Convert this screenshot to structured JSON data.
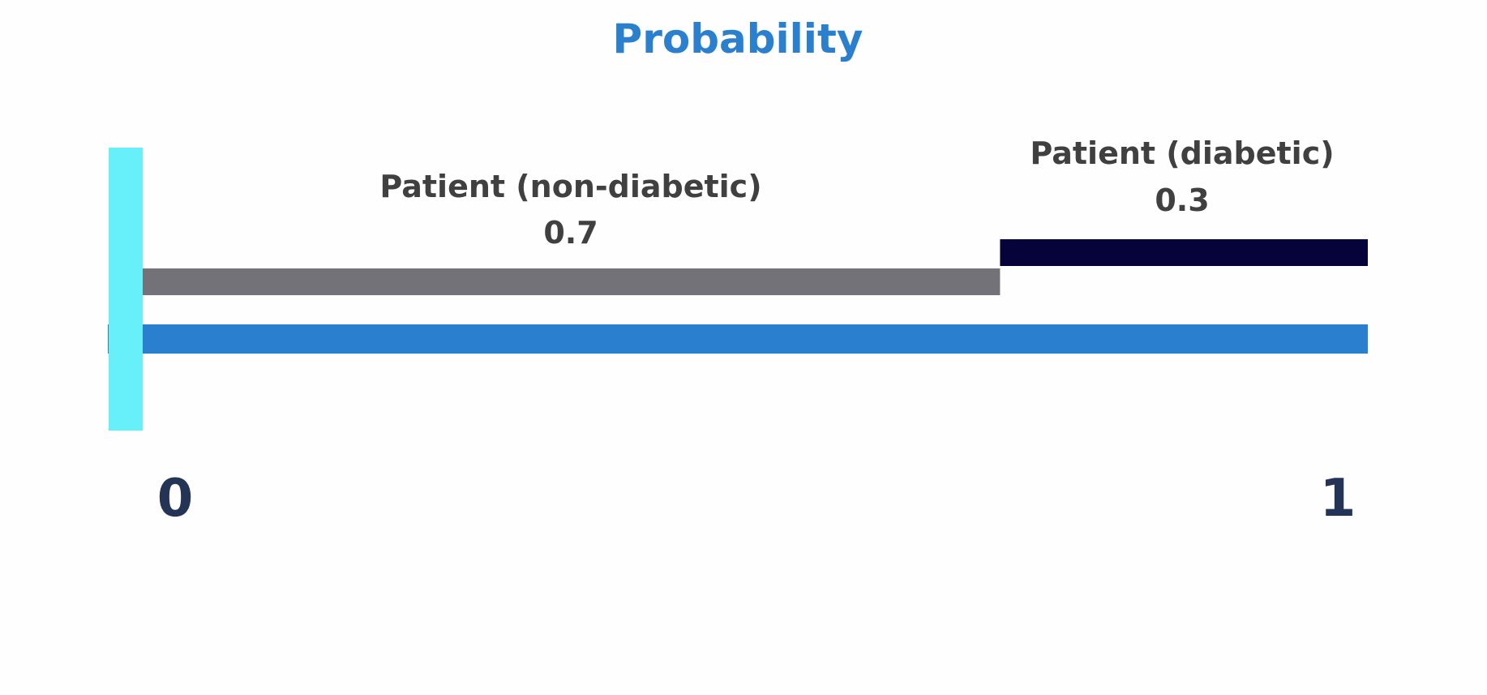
{
  "chart_data": {
    "type": "bar",
    "title": "Probability",
    "xlim": [
      0,
      1
    ],
    "tick_labels": [
      "0",
      "1"
    ],
    "segments": [
      {
        "name": "Patient (non-diabetic)",
        "value_label": "0.7",
        "start": 0.0,
        "end": 0.7,
        "color": "#737278"
      },
      {
        "name": "Patient (diabetic)",
        "value_label": "0.3",
        "start": 0.7,
        "end": 1.0,
        "color": "#05033a"
      }
    ],
    "grid": false
  },
  "colors": {
    "title": "#2a7fce",
    "axis_bar": "#2a7fcf",
    "marker": "#67f0fa",
    "tick_label": "#243456"
  }
}
